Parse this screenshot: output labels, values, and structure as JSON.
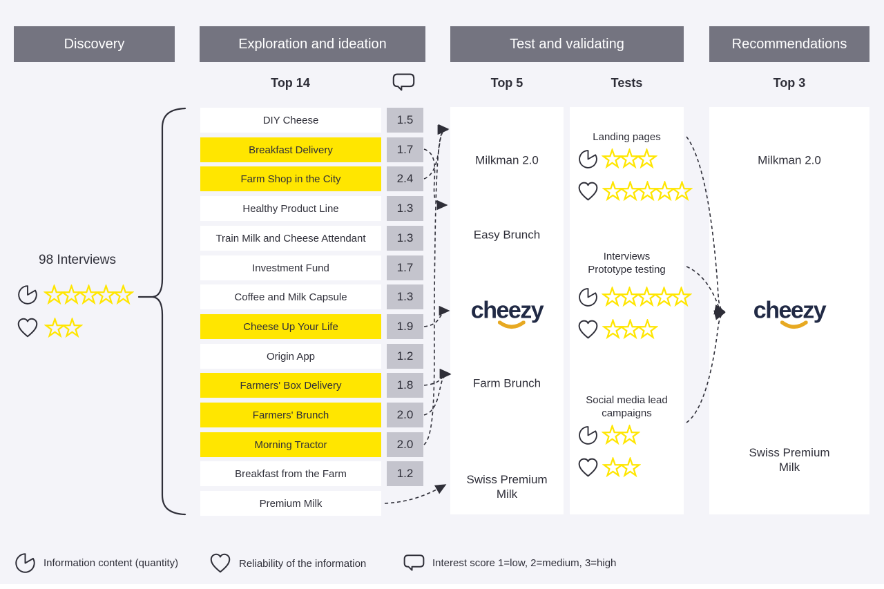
{
  "colors": {
    "accent_yellow": "#ffe600",
    "header_gray": "#747480",
    "score_gray": "#c4c4cd",
    "ink": "#2e2e38",
    "logo_navy": "#212a45",
    "logo_gold": "#e7a922"
  },
  "stages": [
    {
      "label": "Discovery"
    },
    {
      "label": "Exploration and ideation"
    },
    {
      "label": "Test and validating"
    },
    {
      "label": "Recommendations"
    }
  ],
  "columns": {
    "exploration_sub": "Top 14",
    "top5_sub": "Top 5",
    "tests_sub": "Tests",
    "recommendations_sub": "Top 3"
  },
  "discovery": {
    "label": "98 Interviews",
    "quantity_stars": 5,
    "reliability_stars": 2
  },
  "ideas": [
    {
      "label": "DIY Cheese",
      "score": "1.5",
      "highlight": false
    },
    {
      "label": "Breakfast Delivery",
      "score": "1.7",
      "highlight": true
    },
    {
      "label": "Farm Shop in the City",
      "score": "2.4",
      "highlight": true
    },
    {
      "label": "Healthy Product Line",
      "score": "1.3",
      "highlight": false
    },
    {
      "label": "Train Milk and Cheese Attendant",
      "score": "1.3",
      "highlight": false
    },
    {
      "label": "Investment Fund",
      "score": "1.7",
      "highlight": false
    },
    {
      "label": "Coffee and Milk Capsule",
      "score": "1.3",
      "highlight": false
    },
    {
      "label": "Cheese Up Your Life",
      "score": "1.9",
      "highlight": true
    },
    {
      "label": "Origin App",
      "score": "1.2",
      "highlight": false
    },
    {
      "label": "Farmers' Box Delivery",
      "score": "1.8",
      "highlight": true
    },
    {
      "label": "Farmers' Brunch",
      "score": "2.0",
      "highlight": true
    },
    {
      "label": "Morning Tractor",
      "score": "2.0",
      "highlight": true
    },
    {
      "label": "Breakfast from the Farm",
      "score": "1.2",
      "highlight": false
    },
    {
      "label": "Premium Milk",
      "score": null,
      "highlight": false
    }
  ],
  "top5": [
    {
      "label": "Milkman 2.0",
      "type": "text"
    },
    {
      "label": "Easy Brunch",
      "type": "text"
    },
    {
      "label": "cheezy",
      "type": "logo"
    },
    {
      "label": "Farm Brunch",
      "type": "text"
    },
    {
      "label": "Swiss Premium Milk",
      "type": "text"
    }
  ],
  "tests": [
    {
      "label": "Landing pages",
      "quantity_stars": 3,
      "reliability_stars": 5
    },
    {
      "label": "Interviews\nPrototype testing",
      "quantity_stars": 5,
      "reliability_stars": 3
    },
    {
      "label": "Social media lead\ncampaigns",
      "quantity_stars": 2,
      "reliability_stars": 2
    }
  ],
  "recommendations": [
    {
      "label": "Milkman 2.0",
      "type": "text"
    },
    {
      "label": "cheezy",
      "type": "logo"
    },
    {
      "label": "Swiss Premium Milk",
      "type": "text"
    }
  ],
  "legend": [
    {
      "icon": "pie-icon",
      "label": "Information content (quantity)"
    },
    {
      "icon": "heart-icon",
      "label": "Reliability of the information"
    },
    {
      "icon": "speech-bubble-icon",
      "label": "Interest score 1=low, 2=medium, 3=high"
    }
  ]
}
